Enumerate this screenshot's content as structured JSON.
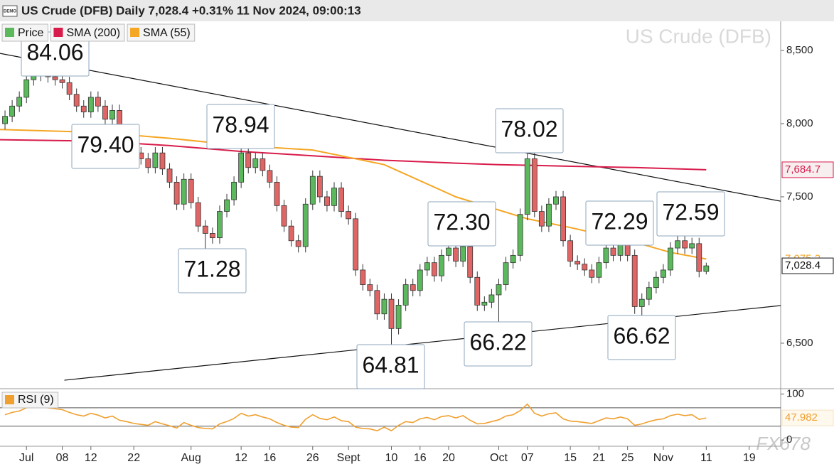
{
  "header": {
    "badge": "DEMO",
    "title": "US Crude (DFB) Daily 7,028.4 +0.31% 11 Nov 2024, 09:00:13"
  },
  "watermark": "US Crude (DFB)",
  "corner_mark": "FX678",
  "chart_data": [
    {
      "type": "candlestick",
      "xlim": [
        -3.7,
        105.4
      ],
      "ylim": [
        6189,
        8699
      ],
      "xticks": [
        {
          "value": 0,
          "label": "Jul"
        },
        {
          "value": 5,
          "label": "08"
        },
        {
          "value": 9,
          "label": "12"
        },
        {
          "value": 15,
          "label": "22"
        },
        {
          "value": 23,
          "label": "Aug"
        },
        {
          "value": 30,
          "label": "12"
        },
        {
          "value": 34,
          "label": "16"
        },
        {
          "value": 40,
          "label": "26"
        },
        {
          "value": 45,
          "label": "Sept"
        },
        {
          "value": 51,
          "label": "10"
        },
        {
          "value": 55,
          "label": "16"
        },
        {
          "value": 59,
          "label": "20"
        },
        {
          "value": 66,
          "label": "Oct"
        },
        {
          "value": 70,
          "label": "07"
        },
        {
          "value": 76,
          "label": "15"
        },
        {
          "value": 80,
          "label": "21"
        },
        {
          "value": 84,
          "label": "25"
        },
        {
          "value": 89,
          "label": "Nov"
        },
        {
          "value": 95,
          "label": "11"
        },
        {
          "value": 101,
          "label": "19"
        }
      ],
      "yticks": [
        {
          "value": 8500,
          "label": "8,500"
        },
        {
          "value": 8000,
          "label": "8,000"
        },
        {
          "value": 7500,
          "label": "7,500"
        },
        {
          "value": 6500,
          "label": "6,500"
        }
      ],
      "candles": {
        "name": "Price",
        "color": "#5cb85c",
        "down_color": "#e06666",
        "last_label": "7,028.4",
        "x": [
          -3,
          -2,
          -1,
          0,
          1,
          2,
          3,
          4,
          5,
          6,
          7,
          8,
          9,
          10,
          11,
          12,
          13,
          14,
          15,
          16,
          17,
          18,
          19,
          20,
          21,
          22,
          23,
          24,
          25,
          26,
          27,
          28,
          29,
          30,
          31,
          32,
          33,
          34,
          35,
          36,
          37,
          38,
          39,
          40,
          41,
          42,
          43,
          44,
          45,
          46,
          47,
          48,
          49,
          50,
          51,
          52,
          53,
          54,
          55,
          56,
          57,
          58,
          59,
          60,
          61,
          62,
          63,
          64,
          65,
          66,
          67,
          68,
          69,
          70,
          71,
          72,
          73,
          74,
          75,
          76,
          77,
          78,
          79,
          80,
          81,
          82,
          83,
          84,
          85,
          86,
          87,
          88,
          89,
          90,
          91,
          92,
          93,
          94,
          95
        ],
        "open": [
          8000,
          8050,
          8120,
          8180,
          8300,
          8330,
          8350,
          8320,
          8300,
          8280,
          8200,
          8120,
          8080,
          8180,
          8120,
          8030,
          8090,
          7950,
          7880,
          7800,
          7760,
          7700,
          7800,
          7690,
          7600,
          7450,
          7620,
          7460,
          7300,
          7250,
          7220,
          7400,
          7480,
          7600,
          7800,
          7700,
          7760,
          7680,
          7600,
          7440,
          7300,
          7200,
          7160,
          7450,
          7640,
          7500,
          7440,
          7560,
          7400,
          7350,
          7000,
          6900,
          6860,
          6700,
          6800,
          6600,
          6760,
          6900,
          6860,
          7000,
          7050,
          6960,
          7100,
          7150,
          7060,
          7160,
          6950,
          6760,
          6780,
          6830,
          6900,
          7050,
          7100,
          7380,
          7760,
          7400,
          7300,
          7450,
          7500,
          7200,
          7060,
          7040,
          7000,
          6950,
          7050,
          7150,
          7100,
          7180,
          7100,
          6750,
          6800,
          6880,
          6950,
          7000,
          7150,
          7200,
          7150,
          7180,
          6990
        ],
        "high": [
          8090,
          8160,
          8220,
          8340,
          8370,
          8406,
          8390,
          8360,
          8340,
          8320,
          8240,
          8160,
          8220,
          8220,
          8160,
          8130,
          8130,
          7990,
          7920,
          7840,
          7800,
          7840,
          7840,
          7730,
          7640,
          7660,
          7660,
          7500,
          7340,
          7290,
          7440,
          7520,
          7640,
          7894,
          7840,
          7800,
          7800,
          7720,
          7640,
          7480,
          7340,
          7240,
          7490,
          7680,
          7680,
          7540,
          7600,
          7600,
          7440,
          7390,
          7040,
          6940,
          6900,
          6840,
          6840,
          6800,
          6940,
          6940,
          7040,
          7090,
          7090,
          7140,
          7190,
          7190,
          7230,
          7200,
          6990,
          6820,
          6870,
          6940,
          7090,
          7140,
          7420,
          7802,
          7800,
          7440,
          7490,
          7540,
          7540,
          7240,
          7100,
          7080,
          7040,
          7090,
          7190,
          7190,
          7229,
          7220,
          7140,
          6840,
          6920,
          6990,
          7040,
          7190,
          7240,
          7259,
          7220,
          7220,
          7050
        ],
        "low": [
          7960,
          8010,
          8080,
          8140,
          8260,
          8290,
          8280,
          8260,
          8240,
          8160,
          8080,
          8040,
          8040,
          8080,
          7990,
          7990,
          7910,
          7840,
          7760,
          7720,
          7660,
          7660,
          7650,
          7560,
          7410,
          7410,
          7420,
          7260,
          7128,
          7180,
          7180,
          7360,
          7440,
          7560,
          7660,
          7660,
          7640,
          7560,
          7400,
          7260,
          7160,
          7120,
          7120,
          7410,
          7460,
          7400,
          7400,
          7360,
          7310,
          6960,
          6860,
          6820,
          6660,
          6660,
          6481,
          6560,
          6720,
          6820,
          6820,
          6960,
          6920,
          6920,
          7060,
          7020,
          7020,
          6910,
          6720,
          6720,
          6740,
          6622,
          6860,
          7010,
          7060,
          7340,
          7360,
          7260,
          7260,
          7410,
          7160,
          7020,
          7000,
          6960,
          6910,
          6910,
          7010,
          7060,
          7060,
          7060,
          6700,
          6662,
          6760,
          6840,
          6910,
          6960,
          7110,
          7110,
          7110,
          6950,
          6970
        ],
        "close": [
          8050,
          8120,
          8180,
          8300,
          8330,
          8350,
          8320,
          8300,
          8280,
          8200,
          8120,
          8080,
          8180,
          8120,
          8030,
          8090,
          7950,
          7880,
          7800,
          7760,
          7700,
          7800,
          7690,
          7600,
          7450,
          7620,
          7460,
          7300,
          7250,
          7220,
          7400,
          7480,
          7600,
          7800,
          7700,
          7760,
          7680,
          7600,
          7440,
          7300,
          7200,
          7160,
          7450,
          7640,
          7500,
          7440,
          7560,
          7400,
          7350,
          7000,
          6900,
          6860,
          6700,
          6800,
          6600,
          6760,
          6900,
          6860,
          7000,
          7050,
          6960,
          7100,
          7150,
          7060,
          7160,
          6950,
          6760,
          6780,
          6830,
          6900,
          7050,
          7100,
          7380,
          7760,
          7400,
          7300,
          7450,
          7500,
          7200,
          7060,
          7040,
          7000,
          6950,
          7050,
          7150,
          7100,
          7180,
          7100,
          6750,
          6800,
          6880,
          6950,
          7000,
          7150,
          7200,
          7150,
          7180,
          6990,
          7028.4
        ]
      },
      "series": [
        {
          "name": "SMA (200)",
          "color": "#d81b4a",
          "x": [
            -3.7,
            10,
            20,
            30,
            40,
            50,
            60,
            66,
            75,
            85,
            95
          ],
          "values": [
            7890,
            7880,
            7850,
            7810,
            7780,
            7750,
            7730,
            7720,
            7710,
            7700,
            7684.7
          ],
          "last_label": "7,684.7"
        },
        {
          "name": "SMA (55)",
          "color": "#f5a623",
          "x": [
            -3.7,
            10,
            20,
            30,
            40,
            50,
            60,
            70,
            76,
            85,
            90,
            95
          ],
          "values": [
            7960,
            7940,
            7900,
            7850,
            7820,
            7720,
            7500,
            7350,
            7290,
            7190,
            7120,
            7075.2
          ],
          "last_label": "7,075.2"
        }
      ],
      "trendlines": [
        {
          "x": [
            -3.7,
            105.4
          ],
          "values": [
            8480,
            7470
          ]
        },
        {
          "x": [
            5.3,
            105.4
          ],
          "values": [
            6247,
            6757
          ]
        }
      ],
      "annotations": [
        {
          "label": "84.06",
          "value": 8406
        },
        {
          "label": "79.40",
          "value": 7940
        },
        {
          "label": "78.94",
          "value": 7894
        },
        {
          "label": "71.28",
          "value": 7128
        },
        {
          "label": "78.02",
          "value": 7802
        },
        {
          "label": "72.30",
          "value": 7230
        },
        {
          "label": "66.22",
          "value": 6622
        },
        {
          "label": "72.29",
          "value": 7229
        },
        {
          "label": "72.59",
          "value": 7259
        },
        {
          "label": "64.81",
          "value": 6481
        },
        {
          "label": "66.62",
          "value": 6662
        }
      ]
    },
    {
      "type": "line",
      "xlim": [
        -3.7,
        105.4
      ],
      "ylim": [
        -9,
        110
      ],
      "yticks": [
        100,
        0
      ],
      "reference_lines": [
        70,
        30
      ],
      "series": [
        {
          "name": "RSI (9)",
          "color": "#f0a030",
          "last_label": "47.982",
          "x": [
            -3,
            -2,
            -1,
            0,
            1,
            2,
            3,
            4,
            5,
            6,
            7,
            8,
            9,
            10,
            11,
            12,
            13,
            14,
            15,
            16,
            17,
            18,
            19,
            20,
            21,
            22,
            23,
            24,
            25,
            26,
            27,
            28,
            29,
            30,
            31,
            32,
            33,
            34,
            35,
            36,
            37,
            38,
            39,
            40,
            41,
            42,
            43,
            44,
            45,
            46,
            47,
            48,
            49,
            50,
            51,
            52,
            53,
            54,
            55,
            56,
            57,
            58,
            59,
            60,
            61,
            62,
            63,
            64,
            65,
            66,
            67,
            68,
            69,
            70,
            71,
            72,
            73,
            74,
            75,
            76,
            77,
            78,
            79,
            80,
            81,
            82,
            83,
            84,
            85,
            86,
            87,
            88,
            89,
            90,
            91,
            92,
            93,
            94,
            95
          ],
          "values": [
            55,
            60,
            63,
            70,
            72,
            73,
            70,
            68,
            66,
            60,
            55,
            52,
            58,
            54,
            48,
            52,
            43,
            40,
            36,
            34,
            32,
            40,
            35,
            31,
            26,
            38,
            32,
            27,
            25,
            24,
            35,
            40,
            47,
            58,
            52,
            55,
            50,
            46,
            38,
            32,
            28,
            27,
            45,
            55,
            47,
            44,
            50,
            42,
            40,
            28,
            25,
            24,
            20,
            28,
            20,
            32,
            40,
            38,
            46,
            49,
            44,
            51,
            53,
            48,
            53,
            43,
            35,
            36,
            40,
            44,
            52,
            55,
            64,
            78,
            58,
            52,
            57,
            59,
            46,
            41,
            40,
            38,
            36,
            42,
            48,
            46,
            50,
            46,
            32,
            35,
            40,
            44,
            46,
            53,
            56,
            53,
            55,
            45,
            47.982
          ]
        }
      ]
    }
  ]
}
